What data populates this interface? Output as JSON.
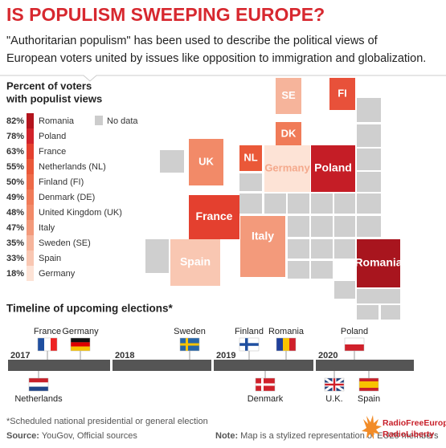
{
  "header": {
    "title": "IS POPULISM SWEEPING EUROPE?",
    "subtitle": [
      "\"Authoritarian populism\" has been used to describe the political views of",
      "European voters united by issues like opposition to immigration and globalization."
    ]
  },
  "legend": {
    "title": [
      "Percent of voters",
      "with populist views"
    ],
    "no_data": "No data",
    "items": [
      {
        "value": "82%",
        "label": "Romania"
      },
      {
        "value": "78%",
        "label": "Poland"
      },
      {
        "value": "63%",
        "label": "France"
      },
      {
        "value": "55%",
        "label": "Netherlands (NL)"
      },
      {
        "value": "50%",
        "label": "Finland (FI)"
      },
      {
        "value": "49%",
        "label": "Denmark (DE)"
      },
      {
        "value": "48%",
        "label": "United Kingdom (UK)"
      },
      {
        "value": "47%",
        "label": "Italy"
      },
      {
        "value": "35%",
        "label": "Sweden (SE)"
      },
      {
        "value": "33%",
        "label": "Spain"
      },
      {
        "value": "18%",
        "label": "Germany"
      }
    ]
  },
  "map": {
    "tiles": [
      "SE",
      "FI",
      "DK",
      "UK",
      "NL",
      "Germany",
      "Poland",
      "France",
      "Italy",
      "Spain",
      "Romania"
    ]
  },
  "timeline": {
    "title": "Timeline of upcoming elections*",
    "years": [
      "2017",
      "2018",
      "2019",
      "2020"
    ],
    "events": [
      "France",
      "Germany",
      "Netherlands",
      "Sweden",
      "Finland",
      "Romania",
      "Denmark",
      "Poland",
      "U.K.",
      "Spain"
    ]
  },
  "footer": {
    "footnote": "*Scheduled national presidential or general election",
    "source_label": "Source:",
    "source": "YouGov, Official sources",
    "note_label": "Note:",
    "note": "Map is a stylized representation of EU28 members",
    "logo": [
      "RadioFreeEurope",
      "RadioLiberty"
    ]
  }
}
